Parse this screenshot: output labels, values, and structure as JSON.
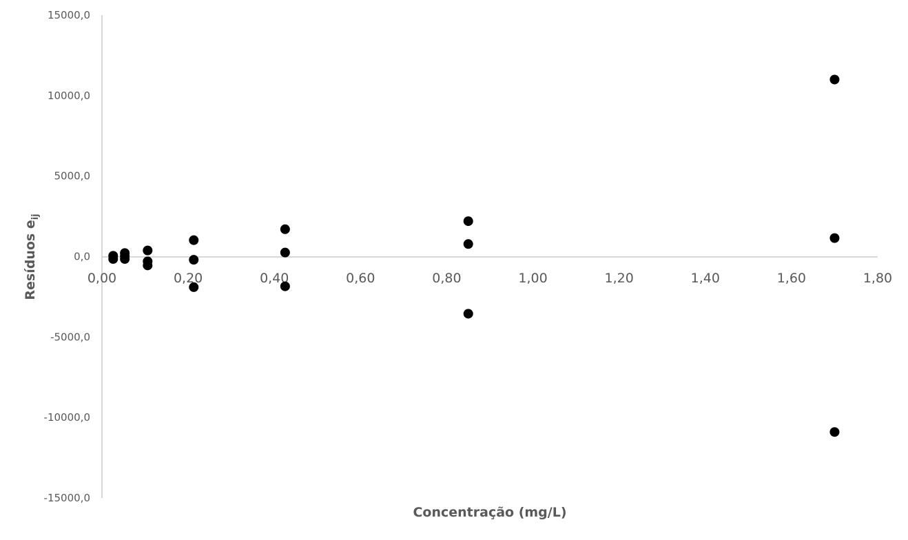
{
  "chart_data": {
    "type": "scatter",
    "title": "",
    "xlabel": "Concentração (mg/L)",
    "ylabel_main": "Resíduos e",
    "ylabel_sub": "ij",
    "xlim": [
      0,
      1.8
    ],
    "ylim": [
      -15000,
      15000
    ],
    "x_ticks": [
      "0,00",
      "0,20",
      "0,40",
      "0,60",
      "0,80",
      "1,00",
      "1,20",
      "1,40",
      "1,60",
      "1,80"
    ],
    "x_tick_values": [
      0,
      0.2,
      0.4,
      0.6,
      0.8,
      1.0,
      1.2,
      1.4,
      1.6,
      1.8
    ],
    "y_ticks": [
      "15000,0",
      "10000,0",
      "5000,0",
      "0,0",
      "-5000,0",
      "-10000,0",
      "-15000,0"
    ],
    "y_tick_values": [
      15000,
      10000,
      5000,
      0,
      -5000,
      -10000,
      -15000
    ],
    "grid": false,
    "legend": "none",
    "marker_color": "#000000",
    "axis_color": "#bfbfbf",
    "text_color": "#595959",
    "points": [
      {
        "x": 0.026,
        "y": 50
      },
      {
        "x": 0.026,
        "y": -150
      },
      {
        "x": 0.053,
        "y": 220
      },
      {
        "x": 0.053,
        "y": 30
      },
      {
        "x": 0.053,
        "y": -150
      },
      {
        "x": 0.106,
        "y": 380
      },
      {
        "x": 0.106,
        "y": -300
      },
      {
        "x": 0.106,
        "y": -550
      },
      {
        "x": 0.213,
        "y": 1020
      },
      {
        "x": 0.213,
        "y": -200
      },
      {
        "x": 0.213,
        "y": -1900
      },
      {
        "x": 0.425,
        "y": 1700
      },
      {
        "x": 0.425,
        "y": 250
      },
      {
        "x": 0.425,
        "y": -1850
      },
      {
        "x": 0.85,
        "y": 2200
      },
      {
        "x": 0.85,
        "y": 780
      },
      {
        "x": 0.85,
        "y": -3550
      },
      {
        "x": 1.7,
        "y": 11000
      },
      {
        "x": 1.7,
        "y": 1150
      },
      {
        "x": 1.7,
        "y": -10900
      }
    ]
  }
}
